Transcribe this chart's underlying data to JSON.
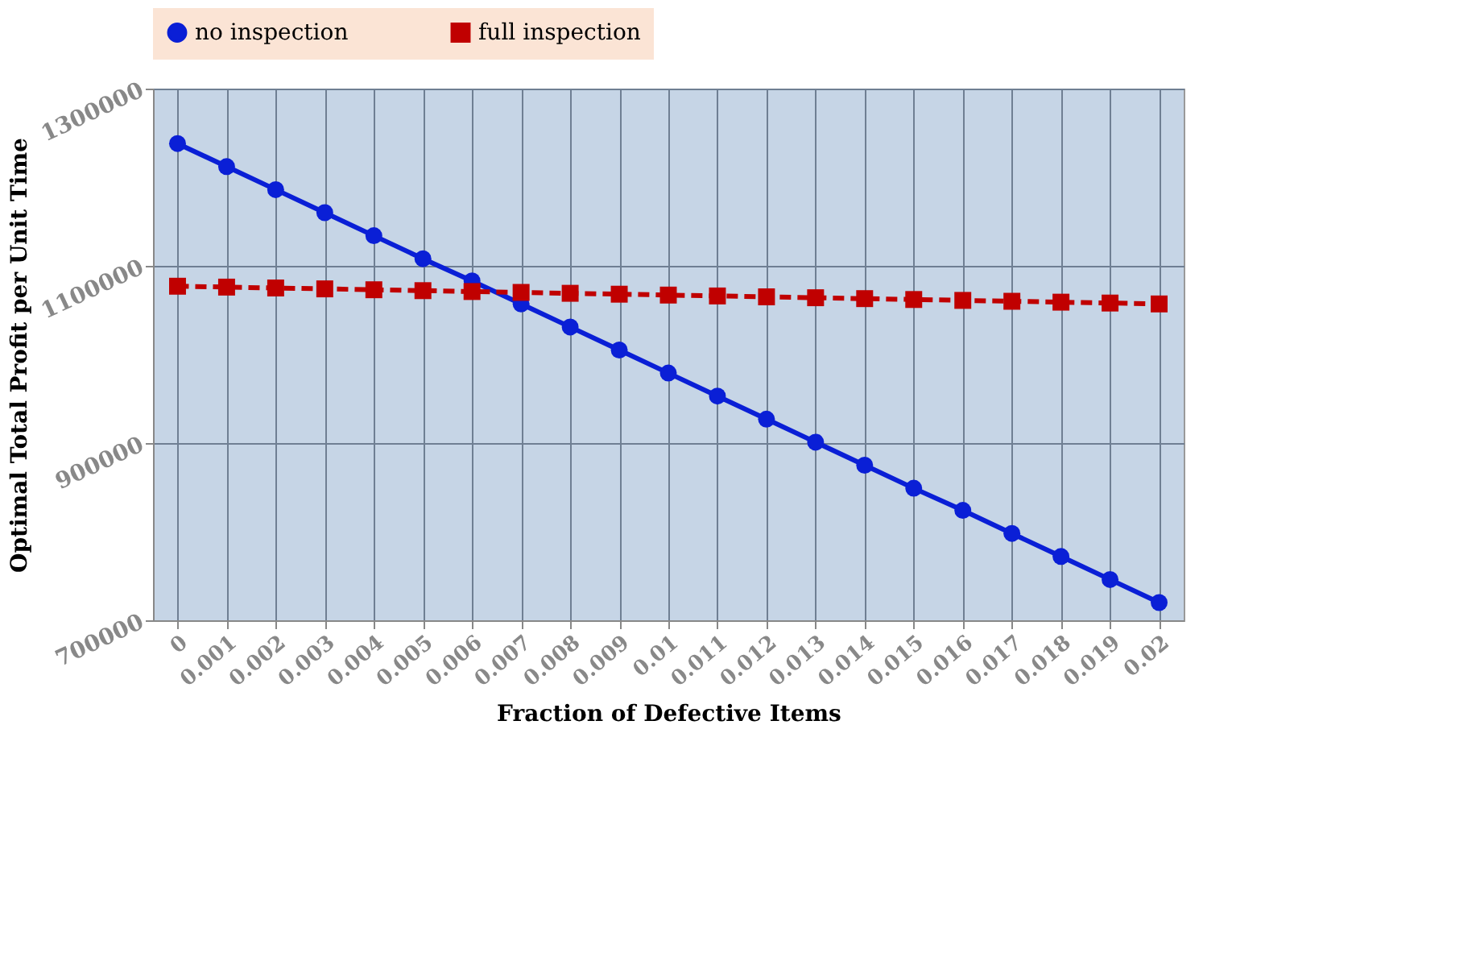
{
  "chart_data": {
    "type": "line",
    "xlabel": "Fraction of Defective Items",
    "ylabel": "Optimal Total Profit per Unit Time",
    "categories": [
      "0",
      "0.001",
      "0.002",
      "0.003",
      "0.004",
      "0.005",
      "0.006",
      "0.007",
      "0.008",
      "0.009",
      "0.01",
      "0.011",
      "0.012",
      "0.013",
      "0.014",
      "0.015",
      "0.016",
      "0.017",
      "0.018",
      "0.019",
      "0.02"
    ],
    "series": [
      {
        "name": "no inspection",
        "color": "#0a1fd6",
        "marker": "circle",
        "line_style": "solid",
        "values": [
          1238000,
          1212000,
          1186000,
          1160000,
          1134000,
          1108000,
          1083000,
          1057000,
          1031000,
          1005000,
          979000,
          953000,
          927000,
          901000,
          875000,
          849000,
          824000,
          798000,
          772000,
          746000,
          720000
        ]
      },
      {
        "name": "full inspection",
        "color": "#c00000",
        "marker": "square",
        "line_style": "dashed",
        "values": [
          1077000,
          1076000,
          1075000,
          1074000,
          1073000,
          1072000,
          1071000,
          1070000,
          1069000,
          1068000,
          1067000,
          1066000,
          1065000,
          1064000,
          1063000,
          1062000,
          1061000,
          1060000,
          1059000,
          1058000,
          1057000
        ]
      }
    ],
    "ylim": [
      700000,
      1300000
    ],
    "yticks": [
      700000,
      900000,
      1100000,
      1300000
    ],
    "grid": true,
    "legend": "top"
  }
}
